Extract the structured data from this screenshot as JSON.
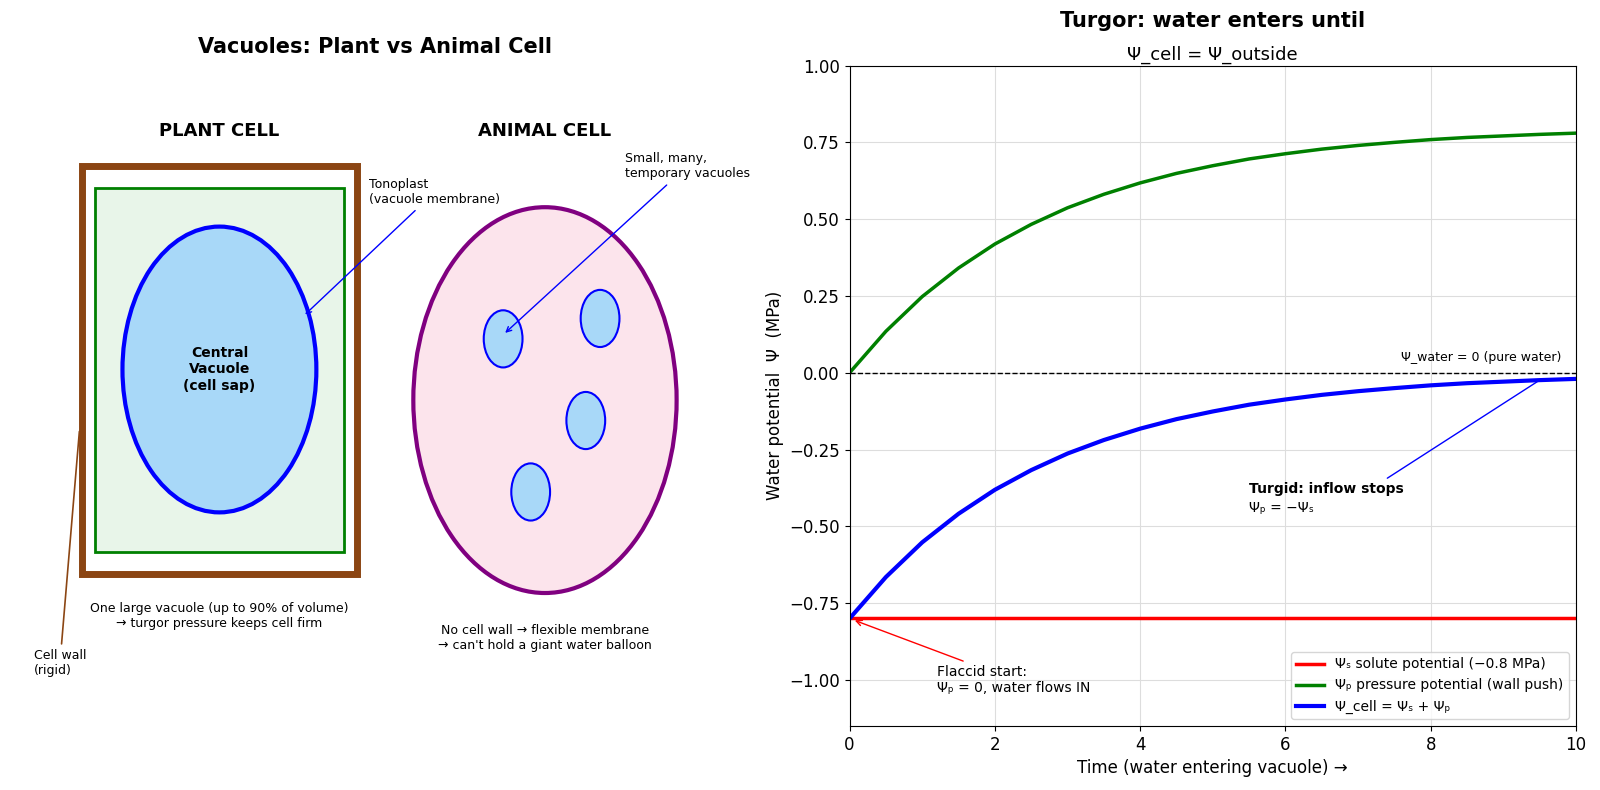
{
  "diagram": {
    "title": "Vacuoles: Plant vs Animal Cell",
    "plant_cell": {
      "heading": "PLANT CELL",
      "vacuole_label": "Central\nVacuole\n(cell sap)",
      "tonoplast_label": "Tonoplast\n(vacuole membrane)",
      "cell_wall_label": "Cell wall\n(rigid)",
      "caption": "One large vacuole (up to 90% of volume)\n→ turgor pressure keeps cell firm"
    },
    "animal_cell": {
      "heading": "ANIMAL CELL",
      "vacuoles_label": "Small, many,\ntemporary vacuoles",
      "caption": "No cell wall → flexible membrane\n→ can't hold a giant water balloon"
    }
  },
  "chart_data": {
    "type": "line",
    "title": "Turgor: water enters until",
    "subtitle": "Ψ_cell = Ψ_outside",
    "x_label": "Time (water entering vacuole) →",
    "y_label": "Water potential  Ψ  (MPa)",
    "x": [
      0,
      0.5,
      1,
      1.5,
      2,
      2.5,
      3,
      3.5,
      4,
      4.5,
      5,
      5.5,
      6,
      6.5,
      7,
      7.5,
      8,
      8.5,
      9,
      9.5,
      10
    ],
    "series": [
      {
        "name": "Ψₛ solute potential (−0.8 MPa)",
        "color": "#ff0000",
        "values": [
          -0.8,
          -0.8,
          -0.8,
          -0.8,
          -0.8,
          -0.8,
          -0.8,
          -0.8,
          -0.8,
          -0.8,
          -0.8,
          -0.8,
          -0.8,
          -0.8,
          -0.8,
          -0.8,
          -0.8,
          -0.8,
          -0.8,
          -0.8,
          -0.8
        ]
      },
      {
        "name": "Ψₚ pressure potential (wall push)",
        "color": "#008000",
        "values": [
          0,
          0.135,
          0.248,
          0.341,
          0.419,
          0.483,
          0.537,
          0.581,
          0.618,
          0.649,
          0.674,
          0.696,
          0.713,
          0.728,
          0.74,
          0.75,
          0.759,
          0.766,
          0.771,
          0.776,
          0.78
        ]
      },
      {
        "name": "Ψ_cell = Ψₛ + Ψₚ",
        "color": "#0000ff",
        "values": [
          -0.8,
          -0.665,
          -0.552,
          -0.459,
          -0.381,
          -0.317,
          -0.263,
          -0.219,
          -0.182,
          -0.151,
          -0.126,
          -0.104,
          -0.087,
          -0.072,
          -0.06,
          -0.05,
          -0.041,
          -0.034,
          -0.029,
          -0.024,
          -0.02
        ]
      }
    ],
    "reference_line": {
      "value": 0,
      "label": "Ψ_water = 0 (pure water)",
      "line_style": "dashed"
    },
    "annotations": [
      {
        "text": "Flaccid start:\nΨₚ = 0, water flows IN"
      },
      {
        "text": "Turgid: inflow stops",
        "detail": "Ψₚ = −Ψₛ"
      }
    ],
    "xlim": [
      0,
      10
    ],
    "xticks": [
      0,
      2,
      4,
      6,
      8,
      10
    ],
    "ylim": [
      -1.15,
      1.0
    ],
    "yticks": [
      {
        "value": -1.0,
        "label": "−1.00"
      },
      {
        "value": -0.75,
        "label": "−0.75"
      },
      {
        "value": -0.5,
        "label": "−0.50"
      },
      {
        "value": -0.25,
        "label": "−0.25"
      },
      {
        "value": 0,
        "label": "0.00"
      },
      0.25,
      {
        "value": 0.5,
        "label": "0.50"
      },
      0.75,
      {
        "value": 1.0,
        "label": "1.00"
      }
    ],
    "grid": true,
    "legend": "lower right"
  }
}
